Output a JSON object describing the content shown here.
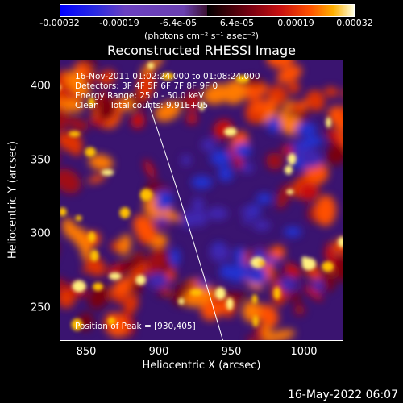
{
  "colorbar": {
    "ticks": [
      "-0.00032",
      "-0.00019",
      "-6.4e-05",
      "6.4e-05",
      "0.00019",
      "0.00032"
    ],
    "unit": "(photons cm⁻² s⁻¹ asec⁻²)"
  },
  "title": "Reconstructed RHESSI Image",
  "info": {
    "time": "16-Nov-2011 01:02:24.000 to 01:08:24.000",
    "detectors": "Detectors: 3F 4F 5F 6F 7F 8F 9F 0",
    "energy": "Energy Range: 25.0 - 50.0 keV",
    "clean": "Clean    Total counts: 9.91E+05",
    "peak": "Position of Peak = [930,405]"
  },
  "axes": {
    "xlabel": "Heliocentric X (arcsec)",
    "ylabel": "Heliocentric Y (arcsec)",
    "xticks": [
      "850",
      "900",
      "950",
      "1000"
    ],
    "yticks": [
      "400",
      "350",
      "300",
      "250"
    ]
  },
  "timestamp": "16-May-2022 06:07",
  "colors": {
    "background": "#000000",
    "low": "#0000ff",
    "mid": "#3a1470",
    "high": "#ffffe0"
  }
}
